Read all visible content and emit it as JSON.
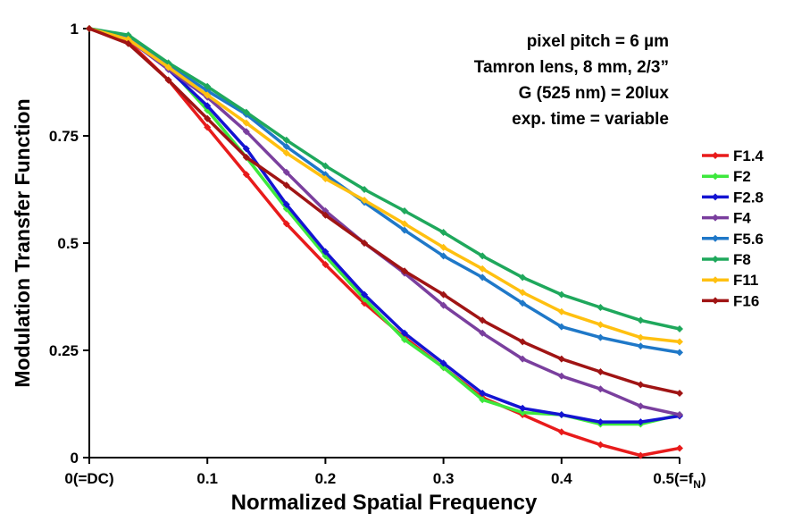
{
  "chart_data": {
    "type": "line",
    "title": "",
    "xlabel": "Normalized Spatial Frequency",
    "ylabel": "Modulation Transfer Function",
    "xlim": [
      0,
      0.5
    ],
    "ylim": [
      0,
      1
    ],
    "grid": false,
    "legend_position": "right",
    "x_ticks": [
      {
        "value": 0,
        "label": "0(=DC)"
      },
      {
        "value": 0.1,
        "label": "0.1"
      },
      {
        "value": 0.2,
        "label": "0.2"
      },
      {
        "value": 0.3,
        "label": "0.3"
      },
      {
        "value": 0.4,
        "label": "0.4"
      },
      {
        "value": 0.5,
        "label": "0.5(=f",
        "sub": "N",
        "suffix": ")"
      }
    ],
    "y_ticks": [
      {
        "value": 0,
        "label": "0"
      },
      {
        "value": 0.25,
        "label": "0.25"
      },
      {
        "value": 0.5,
        "label": "0.5"
      },
      {
        "value": 0.75,
        "label": "0.75"
      },
      {
        "value": 1,
        "label": "1"
      }
    ],
    "annotations": [
      "pixel pitch = 6 µm",
      "Tamron lens, 8 mm, 2/3”",
      "G (525 nm) = 20lux",
      "exp. time = variable"
    ],
    "x": [
      0,
      0.033,
      0.067,
      0.1,
      0.133,
      0.167,
      0.2,
      0.233,
      0.267,
      0.3,
      0.333,
      0.367,
      0.4,
      0.433,
      0.467,
      0.5
    ],
    "series": [
      {
        "name": "F1.4",
        "color": "#e81b1b",
        "values": [
          1.0,
          0.97,
          0.88,
          0.77,
          0.66,
          0.545,
          0.45,
          0.36,
          0.28,
          0.21,
          0.14,
          0.1,
          0.06,
          0.03,
          0.005,
          0.022
        ]
      },
      {
        "name": "F2",
        "color": "#3de83d",
        "values": [
          1.0,
          0.975,
          0.91,
          0.81,
          0.7,
          0.58,
          0.47,
          0.37,
          0.275,
          0.21,
          0.135,
          0.105,
          0.1,
          0.078,
          0.078,
          0.1
        ]
      },
      {
        "name": "F2.8",
        "color": "#1414d2",
        "values": [
          1.0,
          0.975,
          0.905,
          0.82,
          0.72,
          0.59,
          0.48,
          0.38,
          0.29,
          0.22,
          0.15,
          0.115,
          0.1,
          0.083,
          0.083,
          0.097
        ]
      },
      {
        "name": "F4",
        "color": "#7a3f9e",
        "values": [
          1.0,
          0.975,
          0.905,
          0.84,
          0.76,
          0.665,
          0.575,
          0.5,
          0.43,
          0.355,
          0.29,
          0.23,
          0.19,
          0.16,
          0.12,
          0.1
        ]
      },
      {
        "name": "F5.6",
        "color": "#1f78c8",
        "values": [
          1.0,
          0.98,
          0.915,
          0.855,
          0.8,
          0.725,
          0.66,
          0.595,
          0.53,
          0.47,
          0.42,
          0.36,
          0.305,
          0.28,
          0.26,
          0.245
        ]
      },
      {
        "name": "F8",
        "color": "#1fa85c",
        "values": [
          1.0,
          0.985,
          0.92,
          0.865,
          0.805,
          0.74,
          0.68,
          0.625,
          0.575,
          0.525,
          0.47,
          0.42,
          0.38,
          0.35,
          0.32,
          0.3
        ]
      },
      {
        "name": "F11",
        "color": "#ffc010",
        "values": [
          1.0,
          0.975,
          0.91,
          0.845,
          0.78,
          0.71,
          0.65,
          0.6,
          0.545,
          0.49,
          0.44,
          0.385,
          0.34,
          0.31,
          0.28,
          0.27
        ]
      },
      {
        "name": "F16",
        "color": "#a01414",
        "values": [
          1.0,
          0.965,
          0.88,
          0.79,
          0.7,
          0.635,
          0.565,
          0.5,
          0.435,
          0.38,
          0.32,
          0.27,
          0.23,
          0.2,
          0.17,
          0.15
        ]
      }
    ]
  }
}
